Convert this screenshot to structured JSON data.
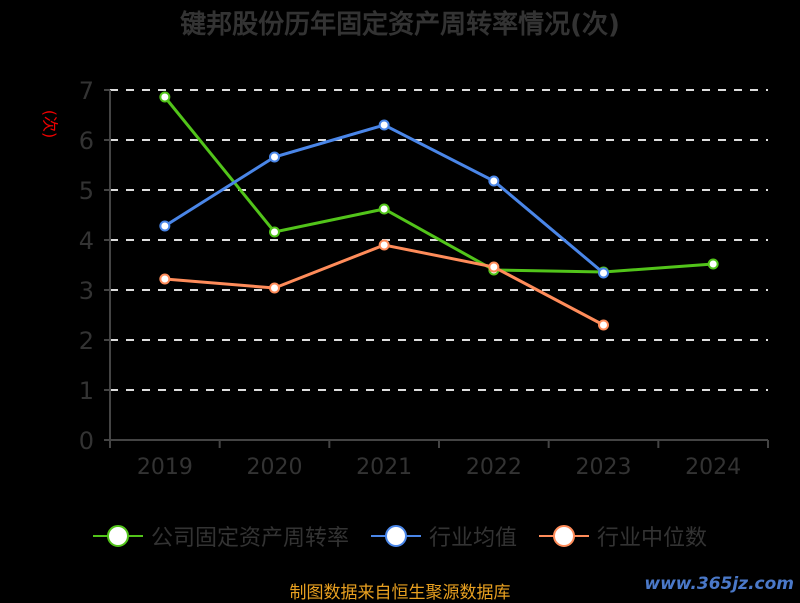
{
  "chart_data": {
    "type": "line",
    "title": "键邦股份历年固定资产周转率情况(次)",
    "ylabel": "(次)",
    "xlabel": "",
    "categories": [
      "2019",
      "2020",
      "2021",
      "2022",
      "2023",
      "2024"
    ],
    "ylim": [
      0,
      7
    ],
    "yticks": [
      "0",
      "1",
      "2",
      "3",
      "4",
      "5",
      "6",
      "7"
    ],
    "grid": true,
    "legend_position": "bottom",
    "series": [
      {
        "name": "公司固定资产周转率",
        "color": "#52c41a",
        "values": [
          6.86,
          4.16,
          4.62,
          3.4,
          3.36,
          3.52
        ]
      },
      {
        "name": "行业均值",
        "color": "#4a86e8",
        "values": [
          4.28,
          5.66,
          6.3,
          5.18,
          3.34,
          null
        ]
      },
      {
        "name": "行业中位数",
        "color": "#ff8c5a",
        "values": [
          3.22,
          3.04,
          3.9,
          3.46,
          2.3,
          null
        ]
      }
    ]
  },
  "footer": {
    "source": "制图数据来自恒生聚源数据库",
    "watermark": "www.365jz.com"
  }
}
